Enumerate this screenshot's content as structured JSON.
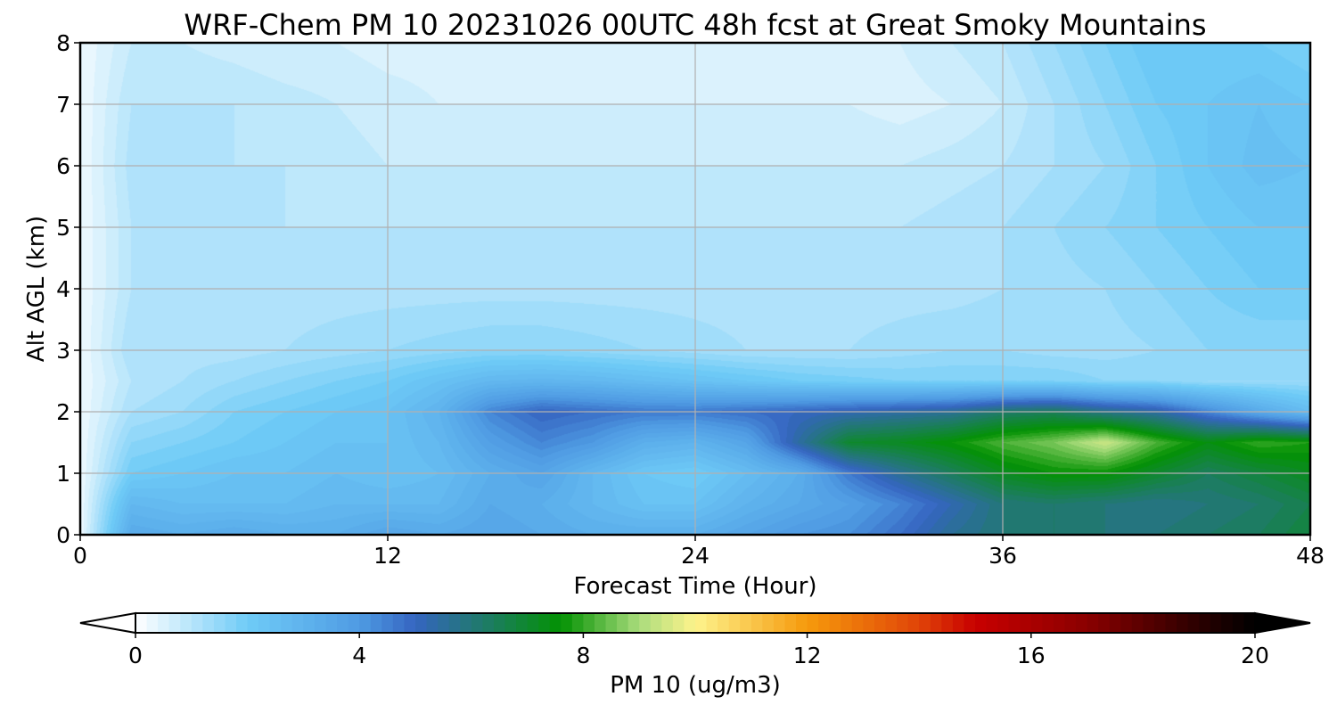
{
  "chart_data": {
    "type": "heatmap",
    "title": "WRF-Chem PM 10  20231026 00UTC 48h fcst at Great Smoky Mountains",
    "xlabel": "Forecast Time (Hour)",
    "ylabel": "Alt AGL (km)",
    "xlim": [
      0,
      48
    ],
    "ylim": [
      0,
      8
    ],
    "xticks": [
      0,
      12,
      24,
      36,
      48
    ],
    "yticks": [
      0,
      1,
      2,
      3,
      4,
      5,
      6,
      7,
      8
    ],
    "grid": true,
    "x_hours": [
      0,
      2,
      4,
      6,
      8,
      10,
      12,
      14,
      16,
      18,
      20,
      22,
      24,
      26,
      28,
      30,
      32,
      34,
      36,
      38,
      40,
      42,
      44,
      46,
      48
    ],
    "y_km": [
      0,
      0.5,
      1,
      1.5,
      2,
      2.5,
      3,
      4,
      5,
      6,
      7,
      8
    ],
    "values_ugm3": [
      [
        0.2,
        3.4,
        3.2,
        3.4,
        3.2,
        3.2,
        3.6,
        3.4,
        3.6,
        3.4,
        3.2,
        3.2,
        3.2,
        3.6,
        4.0,
        4.2,
        4.8,
        5.6,
        6.0,
        6.2,
        6.0,
        6.0,
        6.2,
        6.4,
        6.8
      ],
      [
        0.2,
        2.8,
        2.6,
        2.6,
        2.6,
        2.8,
        2.8,
        2.8,
        3.4,
        3.2,
        2.8,
        2.4,
        2.4,
        3.0,
        3.4,
        3.8,
        4.4,
        5.2,
        6.0,
        6.2,
        6.0,
        5.8,
        6.0,
        6.2,
        6.6
      ],
      [
        0.2,
        2.0,
        2.2,
        2.4,
        2.4,
        2.6,
        2.4,
        2.6,
        3.2,
        3.6,
        2.8,
        2.2,
        2.0,
        2.6,
        3.2,
        4.6,
        5.6,
        6.4,
        7.2,
        7.6,
        7.6,
        7.0,
        6.4,
        6.8,
        7.2
      ],
      [
        0.2,
        1.6,
        1.8,
        2.0,
        2.2,
        2.4,
        2.4,
        2.8,
        3.8,
        4.4,
        4.0,
        3.2,
        3.0,
        3.6,
        5.4,
        7.0,
        7.2,
        7.6,
        8.2,
        8.6,
        9.4,
        8.2,
        7.4,
        8.0,
        7.8
      ],
      [
        0.2,
        1.2,
        1.4,
        1.8,
        2.0,
        2.2,
        2.4,
        3.0,
        4.4,
        5.0,
        4.8,
        4.6,
        4.6,
        4.8,
        5.0,
        5.2,
        5.4,
        5.6,
        6.2,
        6.4,
        5.8,
        5.4,
        4.4,
        3.4,
        2.6
      ],
      [
        0.2,
        1.0,
        1.2,
        1.4,
        1.6,
        1.8,
        2.0,
        2.4,
        2.8,
        2.9,
        2.8,
        2.6,
        2.4,
        2.2,
        2.0,
        1.9,
        1.8,
        1.8,
        1.8,
        1.8,
        1.6,
        1.6,
        1.4,
        1.4,
        1.4
      ],
      [
        0.2,
        1.2,
        1.1,
        1.1,
        1.2,
        1.3,
        1.4,
        1.5,
        1.6,
        1.6,
        1.5,
        1.4,
        1.3,
        1.2,
        1.2,
        1.2,
        1.3,
        1.4,
        1.4,
        1.3,
        1.3,
        1.4,
        1.6,
        1.6,
        1.6
      ],
      [
        0.2,
        1.0,
        1.0,
        1.1,
        1.1,
        1.1,
        1.1,
        1.1,
        1.1,
        1.1,
        1.1,
        1.1,
        1.1,
        1.1,
        1.1,
        1.1,
        1.1,
        1.1,
        1.2,
        1.3,
        1.4,
        1.6,
        1.8,
        2.0,
        2.0
      ],
      [
        0.2,
        1.0,
        1.0,
        1.0,
        1.0,
        1.0,
        1.0,
        1.0,
        1.0,
        1.0,
        1.0,
        1.0,
        1.0,
        1.0,
        1.0,
        1.0,
        1.0,
        1.1,
        1.2,
        1.4,
        1.6,
        1.8,
        2.0,
        2.2,
        2.2
      ],
      [
        0.2,
        1.1,
        1.1,
        1.0,
        1.0,
        0.9,
        0.8,
        0.8,
        0.8,
        0.8,
        0.8,
        0.8,
        0.8,
        0.8,
        0.8,
        0.8,
        0.8,
        0.9,
        1.0,
        1.2,
        1.4,
        1.8,
        2.2,
        2.5,
        2.4
      ],
      [
        0.2,
        1.0,
        1.0,
        1.0,
        0.9,
        0.8,
        0.7,
        0.6,
        0.6,
        0.6,
        0.6,
        0.6,
        0.6,
        0.6,
        0.6,
        0.6,
        0.5,
        0.6,
        0.8,
        1.2,
        1.6,
        2.0,
        2.2,
        2.4,
        2.2
      ],
      [
        0.2,
        0.8,
        0.8,
        0.7,
        0.6,
        0.6,
        0.5,
        0.5,
        0.4,
        0.4,
        0.4,
        0.4,
        0.4,
        0.5,
        0.5,
        0.5,
        0.6,
        0.8,
        1.0,
        1.4,
        1.8,
        2.2,
        2.0,
        2.0,
        1.8
      ]
    ],
    "colorbar": {
      "label": "PM 10  (ug/m3)",
      "min": 0,
      "max": 20,
      "ticks": [
        0,
        4,
        8,
        12,
        16,
        20
      ],
      "extend": "both",
      "levels": 100,
      "color_stops": [
        {
          "value": 0,
          "color": "#ffffff"
        },
        {
          "value": 2,
          "color": "#6fcbf7"
        },
        {
          "value": 4,
          "color": "#4f9be3"
        },
        {
          "value": 5,
          "color": "#3565c0"
        },
        {
          "value": 6.2,
          "color": "#1f7a6a"
        },
        {
          "value": 7.6,
          "color": "#039203"
        },
        {
          "value": 9,
          "color": "#aadc7c"
        },
        {
          "value": 10,
          "color": "#fdf38c"
        },
        {
          "value": 12,
          "color": "#f69a0c"
        },
        {
          "value": 14,
          "color": "#e04408"
        },
        {
          "value": 15,
          "color": "#c80000"
        },
        {
          "value": 17,
          "color": "#8a0000"
        },
        {
          "value": 19,
          "color": "#2a0000"
        },
        {
          "value": 20,
          "color": "#000000"
        }
      ]
    }
  }
}
